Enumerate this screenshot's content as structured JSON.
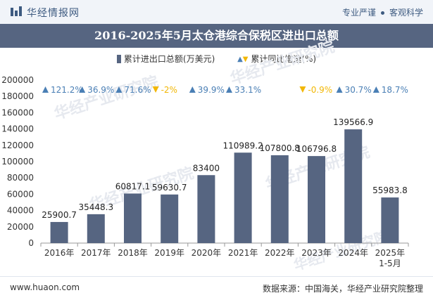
{
  "header": {
    "brand": "华经情报网",
    "tagline_a": "专业严谨",
    "tagline_b": "客观科学"
  },
  "title": "2016-2025年5月太仓港综合保税区进出口总额",
  "legend": {
    "bar_label": "累计进出口总额(万美元)",
    "growth_label": "累计同比增速(%)"
  },
  "footer": {
    "website": "www.huaon.com",
    "source": "数据来源：中国海关，华经产业研究院整理"
  },
  "colors": {
    "bar": "#566581",
    "up": "#4a7fb5",
    "down": "#f2b705"
  },
  "chart_data": {
    "type": "bar",
    "categories": [
      "2016年",
      "2017年",
      "2018年",
      "2019年",
      "2020年",
      "2021年",
      "2022年",
      "2023年",
      "2024年",
      "2025年\n1-5月"
    ],
    "series": [
      {
        "name": "累计进出口总额(万美元)",
        "values": [
          25900.7,
          35448.3,
          60817.1,
          59630.7,
          83400,
          110989.2,
          107800.8,
          106796.8,
          139566.9,
          55983.8
        ]
      },
      {
        "name": "累计同比增速(%)",
        "values": [
          121.2,
          36.9,
          71.6,
          -2,
          39.9,
          33.1,
          null,
          -0.9,
          30.7,
          18.7
        ],
        "labels": [
          "121.2%",
          "36.9%",
          "71.6%",
          "-2%",
          "39.9%",
          "33.1%",
          "",
          "-0.9%",
          "30.7%",
          "18.7%"
        ]
      }
    ],
    "bar_labels": [
      "25900.7",
      "35448.3",
      "60817.1",
      "59630.7",
      "83400",
      "110989.2",
      "107800.8",
      "106796.8",
      "139566.9",
      "55983.8"
    ],
    "yticks": [
      "0",
      "20000",
      "40000",
      "60000",
      "80000",
      "100000",
      "120000",
      "140000",
      "160000",
      "180000",
      "200000"
    ],
    "ylim": [
      0,
      200000
    ],
    "xlabel": "",
    "ylabel": "",
    "legend_position": "top-center",
    "grid": false
  }
}
